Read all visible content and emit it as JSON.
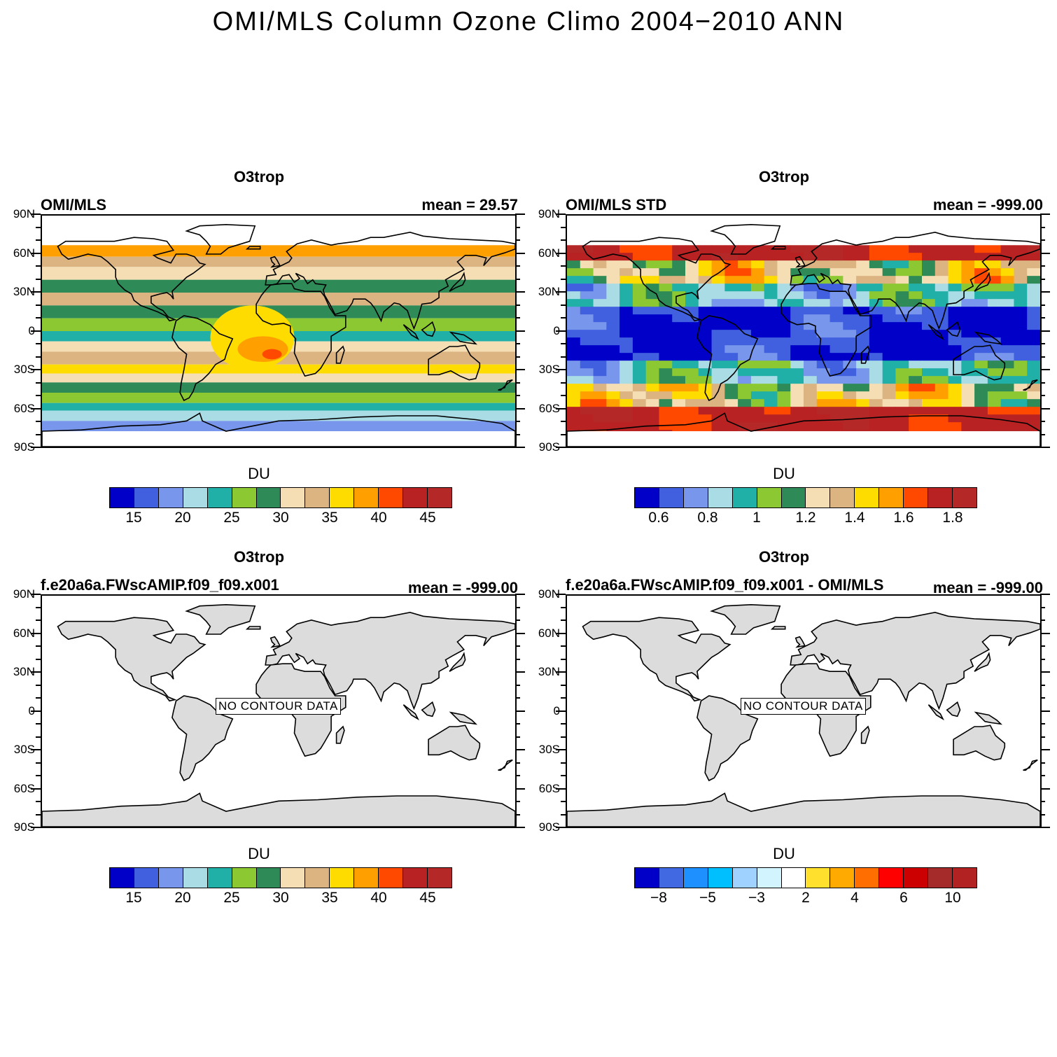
{
  "main_title": "OMI/MLS Column Ozone Climo 2004−2010 ANN",
  "lat_labels": [
    "90N",
    "60N",
    "30N",
    "0",
    "30S",
    "60S",
    "90S"
  ],
  "colors": {
    "ozone_scale": [
      "#0000c8",
      "#4060e0",
      "#7896eb",
      "#aadce6",
      "#20b0a8",
      "#8cc832",
      "#2e8b57",
      "#f5deb3",
      "#dcb482",
      "#ffdc00",
      "#ffa000",
      "#ff4800",
      "#b82222",
      "#b42828"
    ],
    "std_scale": [
      "#0000c8",
      "#4060e0",
      "#7896eb",
      "#aadce6",
      "#20b0a8",
      "#8cc832",
      "#2e8b57",
      "#f5deb3",
      "#dcb482",
      "#ffdc00",
      "#ffa000",
      "#ff4800",
      "#b82222",
      "#b42828"
    ],
    "diff_scale": [
      "#0000c8",
      "#4169e1",
      "#1e90ff",
      "#00bfff",
      "#a0d2ff",
      "#d2f4ff",
      "#ffffff",
      "#ffe12d",
      "#ffaa00",
      "#ff6e00",
      "#ff0000",
      "#cc0000",
      "#a52a2a",
      "#b22222"
    ],
    "land_fill": "#dcdcdc"
  },
  "panels": [
    {
      "variable": "O3trop",
      "left_label": "OMI/MLS",
      "right_label": "mean =  29.57",
      "unit": "DU",
      "state": "filled-ozone",
      "colorbar_labels": [
        "15",
        "20",
        "25",
        "30",
        "35",
        "40",
        "45"
      ]
    },
    {
      "variable": "O3trop",
      "left_label": "OMI/MLS STD",
      "right_label": "mean = -999.00",
      "unit": "DU",
      "state": "filled-std",
      "colorbar_labels": [
        "0.6",
        "0.8",
        "1",
        "1.2",
        "1.4",
        "1.6",
        "1.8"
      ]
    },
    {
      "variable": "O3trop",
      "left_label": "f.e20a6a.FWscAMIP.f09_f09.x001",
      "right_label": "mean = -999.00",
      "unit": "DU",
      "state": "no-data",
      "no_data_text": "NO CONTOUR DATA",
      "colorbar_labels": [
        "15",
        "20",
        "25",
        "30",
        "35",
        "40",
        "45"
      ]
    },
    {
      "variable": "O3trop",
      "left_label": "f.e20a6a.FWscAMIP.f09_f09.x001 - OMI/MLS",
      "right_label": "mean = -999.00",
      "unit": "DU",
      "state": "no-data",
      "no_data_text": "NO CONTOUR DATA",
      "colorbar_labels": [
        "−8",
        "−5",
        "−3",
        "2",
        "4",
        "6",
        "10"
      ]
    }
  ]
}
